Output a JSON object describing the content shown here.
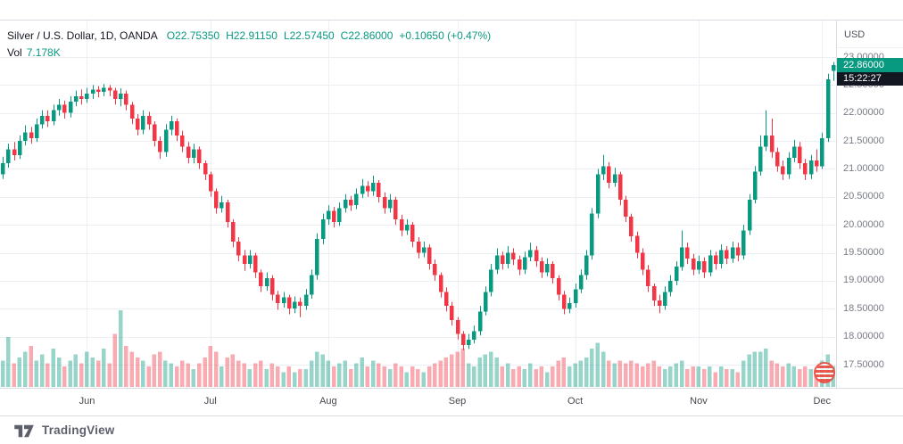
{
  "chart_data": {
    "type": "candlestick",
    "title": "Silver / U.S. Dollar",
    "interval": "1D",
    "exchange": "OANDA",
    "legend": {
      "symbol_text": "Silver / U.S. Dollar, 1D, OANDA",
      "ohlc_items": [
        "O22.75350",
        "H22.91150",
        "L22.57450",
        "C22.86000"
      ],
      "change": "+0.10650 (+0.47%)",
      "vol_label": "Vol",
      "vol_value": "7.178K"
    },
    "price_axis": {
      "currency": "USD",
      "last_price": 22.86,
      "last_price_label": "22.86000",
      "countdown": "15:22:27",
      "ticks": [
        "23.00000",
        "22.50000",
        "22.00000",
        "21.50000",
        "21.00000",
        "20.50000",
        "20.00000",
        "19.50000",
        "19.00000",
        "18.50000",
        "18.00000",
        "17.50000"
      ]
    },
    "x_axis": {
      "month_labels": [
        {
          "label": "Jun",
          "index": 15
        },
        {
          "label": "Jul",
          "index": 37
        },
        {
          "label": "Aug",
          "index": 58
        },
        {
          "label": "Sep",
          "index": 81
        },
        {
          "label": "Oct",
          "index": 102
        },
        {
          "label": "Nov",
          "index": 124
        },
        {
          "label": "Dec",
          "index": 146
        }
      ]
    },
    "y_range": {
      "min": 17.5,
      "max": 23.0,
      "step": 0.5
    },
    "candle_fields": [
      "open",
      "high",
      "low",
      "close",
      "volume_k"
    ],
    "candles": [
      [
        20.9,
        21.22,
        20.82,
        21.1,
        9
      ],
      [
        21.1,
        21.45,
        21.02,
        21.35,
        17
      ],
      [
        21.35,
        21.48,
        21.15,
        21.25,
        8
      ],
      [
        21.25,
        21.6,
        21.18,
        21.5,
        10
      ],
      [
        21.5,
        21.78,
        21.42,
        21.65,
        12
      ],
      [
        21.65,
        21.75,
        21.45,
        21.55,
        14
      ],
      [
        21.55,
        21.9,
        21.48,
        21.8,
        9
      ],
      [
        21.8,
        22.05,
        21.72,
        21.95,
        11
      ],
      [
        21.95,
        22.05,
        21.75,
        21.85,
        8
      ],
      [
        21.85,
        22.15,
        21.78,
        22.05,
        13
      ],
      [
        22.05,
        22.25,
        21.95,
        22.15,
        10
      ],
      [
        22.15,
        22.22,
        21.9,
        22.0,
        7
      ],
      [
        22.0,
        22.3,
        21.92,
        22.2,
        9
      ],
      [
        22.2,
        22.4,
        22.12,
        22.3,
        11
      ],
      [
        22.3,
        22.42,
        22.15,
        22.25,
        8
      ],
      [
        22.25,
        22.45,
        22.18,
        22.35,
        12
      ],
      [
        22.35,
        22.5,
        22.25,
        22.42,
        10
      ],
      [
        22.42,
        22.48,
        22.28,
        22.38,
        9
      ],
      [
        22.38,
        22.52,
        22.3,
        22.45,
        13
      ],
      [
        22.45,
        22.5,
        22.3,
        22.4,
        8
      ],
      [
        22.4,
        22.45,
        22.15,
        22.25,
        18
      ],
      [
        22.25,
        22.44,
        22.12,
        22.35,
        26
      ],
      [
        22.35,
        22.4,
        22.05,
        22.15,
        14
      ],
      [
        22.15,
        22.2,
        21.8,
        21.9,
        12
      ],
      [
        21.9,
        21.98,
        21.6,
        21.7,
        10
      ],
      [
        21.7,
        22.05,
        21.62,
        21.95,
        9
      ],
      [
        21.95,
        22.02,
        21.7,
        21.8,
        7
      ],
      [
        21.8,
        21.85,
        21.4,
        21.5,
        11
      ],
      [
        21.5,
        21.58,
        21.18,
        21.3,
        12
      ],
      [
        21.3,
        21.8,
        21.22,
        21.7,
        9
      ],
      [
        21.7,
        21.95,
        21.6,
        21.85,
        8
      ],
      [
        21.85,
        21.9,
        21.5,
        21.6,
        7
      ],
      [
        21.6,
        21.68,
        21.3,
        21.4,
        9
      ],
      [
        21.4,
        21.48,
        21.1,
        21.2,
        8
      ],
      [
        21.2,
        21.45,
        21.1,
        21.35,
        6
      ],
      [
        21.35,
        21.4,
        21.0,
        21.1,
        8
      ],
      [
        21.1,
        21.15,
        20.8,
        20.9,
        10
      ],
      [
        20.9,
        20.95,
        20.5,
        20.6,
        14
      ],
      [
        20.6,
        20.65,
        20.2,
        20.3,
        12
      ],
      [
        20.3,
        20.52,
        20.22,
        20.4,
        7
      ],
      [
        20.4,
        20.45,
        19.95,
        20.05,
        10
      ],
      [
        20.05,
        20.1,
        19.6,
        19.7,
        11
      ],
      [
        19.7,
        19.78,
        19.35,
        19.45,
        9
      ],
      [
        19.45,
        19.55,
        19.18,
        19.3,
        8
      ],
      [
        19.3,
        19.55,
        19.22,
        19.45,
        6
      ],
      [
        19.45,
        19.5,
        19.05,
        19.15,
        8
      ],
      [
        19.15,
        19.2,
        18.8,
        18.9,
        9
      ],
      [
        18.9,
        19.15,
        18.82,
        19.05,
        6
      ],
      [
        19.05,
        19.1,
        18.65,
        18.75,
        8
      ],
      [
        18.75,
        18.82,
        18.48,
        18.6,
        7
      ],
      [
        18.6,
        18.8,
        18.52,
        18.7,
        5
      ],
      [
        18.7,
        18.75,
        18.4,
        18.5,
        7
      ],
      [
        18.5,
        18.72,
        18.42,
        18.62,
        5
      ],
      [
        18.62,
        18.7,
        18.35,
        18.55,
        6
      ],
      [
        18.55,
        18.85,
        18.48,
        18.75,
        6
      ],
      [
        18.75,
        19.2,
        18.68,
        19.1,
        9
      ],
      [
        19.1,
        19.85,
        19.02,
        19.75,
        12
      ],
      [
        19.75,
        20.2,
        19.65,
        20.1,
        11
      ],
      [
        20.1,
        20.35,
        20.0,
        20.25,
        9
      ],
      [
        20.25,
        20.32,
        19.95,
        20.05,
        7
      ],
      [
        20.05,
        20.4,
        19.98,
        20.3,
        8
      ],
      [
        20.3,
        20.55,
        20.22,
        20.45,
        9
      ],
      [
        20.45,
        20.52,
        20.25,
        20.35,
        6
      ],
      [
        20.35,
        20.65,
        20.28,
        20.55,
        8
      ],
      [
        20.55,
        20.82,
        20.48,
        20.7,
        10
      ],
      [
        20.7,
        20.78,
        20.5,
        20.6,
        7
      ],
      [
        20.6,
        20.88,
        20.52,
        20.75,
        9
      ],
      [
        20.75,
        20.8,
        20.4,
        20.5,
        8
      ],
      [
        20.5,
        20.58,
        20.2,
        20.3,
        7
      ],
      [
        20.3,
        20.55,
        20.22,
        20.45,
        6
      ],
      [
        20.45,
        20.5,
        20.0,
        20.1,
        8
      ],
      [
        20.1,
        20.18,
        19.8,
        19.9,
        7
      ],
      [
        19.9,
        20.1,
        19.82,
        20.0,
        5
      ],
      [
        20.0,
        20.05,
        19.6,
        19.7,
        7
      ],
      [
        19.7,
        19.78,
        19.4,
        19.5,
        6
      ],
      [
        19.5,
        19.7,
        19.42,
        19.6,
        5
      ],
      [
        19.6,
        19.65,
        19.2,
        19.3,
        7
      ],
      [
        19.3,
        19.38,
        19.0,
        19.1,
        8
      ],
      [
        19.1,
        19.15,
        18.7,
        18.8,
        9
      ],
      [
        18.8,
        18.88,
        18.45,
        18.55,
        10
      ],
      [
        18.55,
        18.62,
        18.2,
        18.3,
        11
      ],
      [
        18.3,
        18.35,
        17.95,
        18.05,
        12
      ],
      [
        18.05,
        18.1,
        17.76,
        17.85,
        13
      ],
      [
        17.85,
        18.05,
        17.78,
        17.95,
        8
      ],
      [
        17.95,
        18.2,
        17.88,
        18.1,
        7
      ],
      [
        18.1,
        18.55,
        18.02,
        18.45,
        10
      ],
      [
        18.45,
        18.9,
        18.38,
        18.8,
        11
      ],
      [
        18.8,
        19.3,
        18.72,
        19.2,
        12
      ],
      [
        19.2,
        19.58,
        19.12,
        19.45,
        10
      ],
      [
        19.45,
        19.52,
        19.2,
        19.3,
        7
      ],
      [
        19.3,
        19.62,
        19.22,
        19.5,
        8
      ],
      [
        19.5,
        19.58,
        19.28,
        19.38,
        6
      ],
      [
        19.38,
        19.45,
        19.1,
        19.2,
        7
      ],
      [
        19.2,
        19.52,
        19.12,
        19.42,
        6
      ],
      [
        19.42,
        19.68,
        19.35,
        19.55,
        8
      ],
      [
        19.55,
        19.62,
        19.25,
        19.35,
        6
      ],
      [
        19.35,
        19.42,
        19.05,
        19.15,
        7
      ],
      [
        19.15,
        19.4,
        19.08,
        19.3,
        5
      ],
      [
        19.3,
        19.35,
        18.95,
        19.05,
        7
      ],
      [
        19.05,
        19.1,
        18.65,
        18.75,
        9
      ],
      [
        18.75,
        18.82,
        18.4,
        18.5,
        10
      ],
      [
        18.5,
        18.7,
        18.42,
        18.6,
        7
      ],
      [
        18.6,
        18.95,
        18.52,
        18.85,
        8
      ],
      [
        18.85,
        19.2,
        18.78,
        19.1,
        9
      ],
      [
        19.1,
        19.55,
        19.02,
        19.45,
        10
      ],
      [
        19.45,
        20.3,
        19.38,
        20.2,
        13
      ],
      [
        20.2,
        21.0,
        20.12,
        20.9,
        15
      ],
      [
        20.9,
        21.25,
        20.8,
        21.05,
        12
      ],
      [
        21.05,
        21.12,
        20.65,
        20.75,
        9
      ],
      [
        20.75,
        21.02,
        20.68,
        20.9,
        8
      ],
      [
        20.9,
        20.95,
        20.35,
        20.45,
        9
      ],
      [
        20.45,
        20.52,
        20.05,
        20.15,
        8
      ],
      [
        20.15,
        20.2,
        19.7,
        19.8,
        9
      ],
      [
        19.8,
        19.88,
        19.4,
        19.5,
        8
      ],
      [
        19.5,
        19.58,
        19.1,
        19.2,
        7
      ],
      [
        19.2,
        19.28,
        18.8,
        18.9,
        8
      ],
      [
        18.9,
        18.95,
        18.55,
        18.65,
        9
      ],
      [
        18.65,
        18.75,
        18.42,
        18.55,
        7
      ],
      [
        18.55,
        18.9,
        18.48,
        18.8,
        6
      ],
      [
        18.8,
        19.1,
        18.72,
        19.0,
        7
      ],
      [
        19.0,
        19.35,
        18.92,
        19.25,
        8
      ],
      [
        19.25,
        19.9,
        19.18,
        19.6,
        9
      ],
      [
        19.6,
        19.68,
        19.3,
        19.4,
        6
      ],
      [
        19.4,
        19.48,
        19.1,
        19.2,
        7
      ],
      [
        19.2,
        19.45,
        19.12,
        19.35,
        7
      ],
      [
        19.35,
        19.42,
        19.05,
        19.15,
        6
      ],
      [
        19.15,
        19.55,
        19.08,
        19.45,
        7
      ],
      [
        19.45,
        19.52,
        19.2,
        19.3,
        5
      ],
      [
        19.3,
        19.65,
        19.22,
        19.55,
        7
      ],
      [
        19.55,
        19.62,
        19.3,
        19.4,
        6
      ],
      [
        19.4,
        19.7,
        19.32,
        19.6,
        6
      ],
      [
        19.6,
        19.68,
        19.35,
        19.45,
        5
      ],
      [
        19.45,
        20.0,
        19.38,
        19.9,
        9
      ],
      [
        19.9,
        20.55,
        19.82,
        20.45,
        11
      ],
      [
        20.45,
        21.05,
        20.38,
        20.95,
        12
      ],
      [
        20.95,
        21.6,
        20.88,
        21.4,
        12
      ],
      [
        21.4,
        22.05,
        21.32,
        21.6,
        13
      ],
      [
        21.6,
        21.9,
        21.2,
        21.3,
        9
      ],
      [
        21.3,
        21.38,
        20.95,
        21.05,
        8
      ],
      [
        21.05,
        21.15,
        20.8,
        20.9,
        7
      ],
      [
        20.9,
        21.3,
        20.82,
        21.2,
        8
      ],
      [
        21.2,
        21.52,
        21.12,
        21.4,
        7
      ],
      [
        21.4,
        21.48,
        21.0,
        21.1,
        6
      ],
      [
        21.1,
        21.18,
        20.8,
        20.9,
        7
      ],
      [
        20.9,
        21.25,
        20.82,
        21.15,
        6
      ],
      [
        21.15,
        21.35,
        20.95,
        21.05,
        6
      ],
      [
        21.05,
        21.65,
        21.0,
        21.55,
        9
      ],
      [
        21.55,
        22.7,
        21.48,
        22.6,
        11
      ],
      [
        22.7535,
        22.9115,
        22.5745,
        22.86,
        7.178
      ]
    ],
    "colors": {
      "up": "#089981",
      "down": "#f23645",
      "vol_up": "rgba(8,153,129,0.42)",
      "vol_down": "rgba(242,54,69,0.42)",
      "grid": "#eceff4",
      "axis_text": "#787b86",
      "legend_text": "#131722",
      "badge_bg": "#089981",
      "badge_text": "#ffffff",
      "countdown_bg": "#131722"
    }
  },
  "footer": {
    "brand": "TradingView"
  }
}
